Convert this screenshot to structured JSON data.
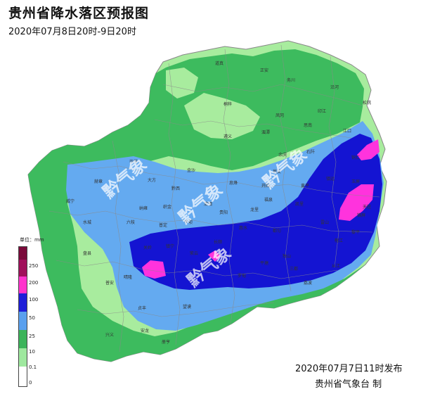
{
  "header": {
    "title": "贵州省降水落区预报图",
    "subtitle": "2020年07月8日20时-9日20时"
  },
  "legend": {
    "unit_label": "单位：mm",
    "ticks": [
      "250",
      "200",
      "100",
      "50",
      "25",
      "10",
      "0.1",
      "0"
    ],
    "colors": [
      "#7a0a3a",
      "#a0105a",
      "#ff33cc",
      "#1e1ed8",
      "#5aa0ee",
      "#3cb45a",
      "#9ee89e",
      "#ffffff"
    ]
  },
  "map": {
    "colors": {
      "light_green": "#a8ec9e",
      "green": "#3dbb5e",
      "light_blue": "#64aaf0",
      "blue": "#1414d2",
      "magenta": "#ff33dd",
      "boundary": "#888888"
    },
    "cities": [
      "道真",
      "正安",
      "务川",
      "沿河",
      "印江",
      "松桃",
      "桐梓",
      "凤冈",
      "思南",
      "江口",
      "遵义",
      "湄潭",
      "余庆",
      "石阡",
      "铜仁",
      "毕节",
      "大方",
      "黔西",
      "金沙",
      "息烽",
      "开阳",
      "瓮安",
      "黄平",
      "镇远",
      "玉屏",
      "威宁",
      "赫章",
      "纳雍",
      "织金",
      "清镇",
      "贵阳",
      "龙里",
      "福泉",
      "凯里",
      "天柱",
      "水城",
      "六枝",
      "普定",
      "平坝",
      "惠水",
      "都匀",
      "雷山",
      "榕江",
      "黎平",
      "锦屏",
      "盘县",
      "关岭",
      "镇宁",
      "紫云",
      "长顺",
      "罗甸",
      "平塘",
      "独山",
      "三都",
      "从江",
      "普安",
      "晴隆",
      "贞丰",
      "望谟",
      "兴义",
      "安龙",
      "册亨",
      "荔波"
    ],
    "watermark": "黔气象"
  },
  "footer": {
    "issue_time": "2020年07月7日11时发布",
    "issuer": "贵州省气象台  制"
  }
}
